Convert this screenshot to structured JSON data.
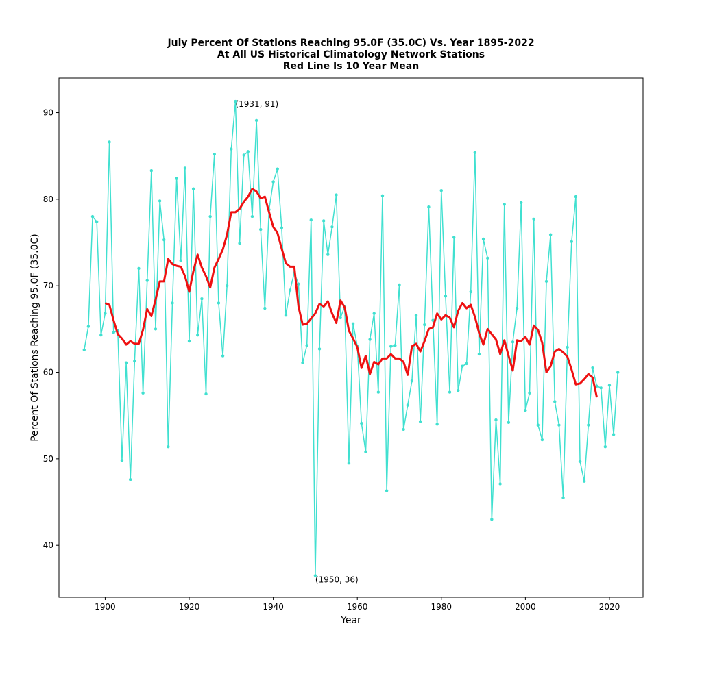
{
  "chart_data": {
    "type": "line",
    "title_lines": [
      "July Percent Of Stations Reaching 95.0F (35.0C) Vs. Year 1895-2022",
      "At All US Historical Climatology Network Stations",
      "Red Line Is 10 Year Mean"
    ],
    "xlabel": "Year",
    "ylabel": "Percent Of Stations Reaching 95.0F (35.0C)",
    "xlim": [
      1889,
      2028
    ],
    "ylim": [
      34,
      94
    ],
    "x_ticks": [
      1900,
      1920,
      1940,
      1960,
      1980,
      2000,
      2020
    ],
    "y_ticks": [
      40,
      50,
      60,
      70,
      80,
      90
    ],
    "grid": false,
    "colors": {
      "annual": "#40e0d0",
      "mean": "#ee1111",
      "axis": "#000000"
    },
    "annotations": [
      {
        "text": "(1931, 91)",
        "x": 1931,
        "y": 91
      },
      {
        "text": "(1950, 36)",
        "x": 1950,
        "y": 36
      }
    ],
    "series": [
      {
        "key": "annual",
        "x": [
          1895,
          1896,
          1897,
          1898,
          1899,
          1900,
          1901,
          1902,
          1903,
          1904,
          1905,
          1906,
          1907,
          1908,
          1909,
          1910,
          1911,
          1912,
          1913,
          1914,
          1915,
          1916,
          1917,
          1918,
          1919,
          1920,
          1921,
          1922,
          1923,
          1924,
          1925,
          1926,
          1927,
          1928,
          1929,
          1930,
          1931,
          1932,
          1933,
          1934,
          1935,
          1936,
          1937,
          1938,
          1939,
          1940,
          1941,
          1942,
          1943,
          1944,
          1945,
          1946,
          1947,
          1948,
          1949,
          1950,
          1951,
          1952,
          1953,
          1954,
          1955,
          1956,
          1957,
          1958,
          1959,
          1960,
          1961,
          1962,
          1963,
          1964,
          1965,
          1966,
          1967,
          1968,
          1969,
          1970,
          1971,
          1972,
          1973,
          1974,
          1975,
          1976,
          1977,
          1978,
          1979,
          1980,
          1981,
          1982,
          1983,
          1984,
          1985,
          1986,
          1987,
          1988,
          1989,
          1990,
          1991,
          1992,
          1993,
          1994,
          1995,
          1996,
          1997,
          1998,
          1999,
          2000,
          2001,
          2002,
          2003,
          2004,
          2005,
          2006,
          2007,
          2008,
          2009,
          2010,
          2011,
          2012,
          2013,
          2014,
          2015,
          2016,
          2017,
          2018,
          2019,
          2020,
          2021,
          2022
        ],
        "values": [
          62.6,
          65.3,
          78.0,
          77.4,
          64.3,
          66.8,
          86.6,
          64.6,
          64.8,
          49.8,
          61.1,
          47.6,
          61.3,
          72.0,
          57.6,
          70.6,
          83.3,
          65.0,
          79.8,
          75.3,
          51.4,
          68.0,
          82.4,
          72.9,
          83.6,
          63.6,
          81.2,
          64.3,
          68.5,
          57.5,
          78.0,
          85.2,
          68.0,
          61.9,
          70.0,
          85.8,
          91.3,
          74.9,
          85.1,
          85.5,
          78.0,
          89.1,
          76.5,
          67.4,
          78.8,
          82.0,
          83.5,
          76.7,
          66.6,
          69.5,
          71.5,
          70.2,
          61.1,
          63.1,
          77.6,
          36.5,
          62.7,
          77.5,
          73.6,
          76.8,
          80.5,
          66.3,
          67.6,
          49.5,
          65.6,
          63.0,
          54.1,
          50.8,
          63.8,
          66.8,
          57.7,
          80.4,
          46.3,
          63.0,
          63.1,
          70.1,
          53.4,
          56.2,
          59.0,
          66.6,
          54.3,
          65.5,
          79.1,
          66.0,
          54.0,
          81.0,
          68.8,
          57.7,
          75.6,
          57.9,
          60.7,
          61.0,
          69.3,
          85.4,
          62.1,
          75.4,
          73.2,
          43.0,
          54.5,
          47.1,
          79.4,
          54.2,
          63.5,
          67.4,
          79.6,
          55.6,
          57.6,
          77.7,
          53.9,
          52.2,
          70.5,
          75.9,
          56.6,
          53.9,
          45.5,
          62.9,
          75.1,
          80.3,
          49.7,
          47.4,
          53.9,
          60.5,
          58.4,
          58.2,
          51.4,
          58.5,
          52.8,
          60.0
        ]
      },
      {
        "key": "mean",
        "x": [
          1900,
          1901,
          1902,
          1903,
          1904,
          1905,
          1906,
          1907,
          1908,
          1909,
          1910,
          1911,
          1912,
          1913,
          1914,
          1915,
          1916,
          1917,
          1918,
          1919,
          1920,
          1921,
          1922,
          1923,
          1924,
          1925,
          1926,
          1927,
          1928,
          1929,
          1930,
          1931,
          1932,
          1933,
          1934,
          1935,
          1936,
          1937,
          1938,
          1939,
          1940,
          1941,
          1942,
          1943,
          1944,
          1945,
          1946,
          1947,
          1948,
          1949,
          1950,
          1951,
          1952,
          1953,
          1954,
          1955,
          1956,
          1957,
          1958,
          1959,
          1960,
          1961,
          1962,
          1963,
          1964,
          1965,
          1966,
          1967,
          1968,
          1969,
          1970,
          1971,
          1972,
          1973,
          1974,
          1975,
          1976,
          1977,
          1978,
          1979,
          1980,
          1981,
          1982,
          1983,
          1984,
          1985,
          1986,
          1987,
          1988,
          1989,
          1990,
          1991,
          1992,
          1993,
          1994,
          1995,
          1996,
          1997,
          1998,
          1999,
          2000,
          2001,
          2002,
          2003,
          2004,
          2005,
          2006,
          2007,
          2008,
          2009,
          2010,
          2011,
          2012,
          2013,
          2014,
          2015,
          2016,
          2017
        ],
        "values": [
          68.0,
          67.8,
          66.0,
          64.4,
          63.9,
          63.2,
          63.6,
          63.3,
          63.3,
          64.9,
          67.3,
          66.5,
          68.4,
          70.5,
          70.5,
          73.1,
          72.5,
          72.3,
          72.2,
          71.1,
          69.3,
          71.7,
          73.6,
          72.1,
          71.1,
          69.8,
          72.1,
          73.1,
          74.2,
          75.9,
          78.5,
          78.5,
          78.9,
          79.7,
          80.3,
          81.2,
          80.9,
          80.1,
          80.3,
          78.5,
          76.8,
          76.1,
          74.3,
          72.6,
          72.2,
          72.2,
          67.6,
          65.5,
          65.6,
          66.2,
          66.8,
          67.9,
          67.6,
          68.2,
          66.8,
          65.7,
          68.3,
          67.5,
          64.8,
          63.9,
          62.9,
          60.5,
          61.9,
          59.8,
          61.2,
          60.9,
          61.6,
          61.6,
          62.1,
          61.6,
          61.6,
          61.2,
          59.7,
          63.0,
          63.3,
          62.4,
          63.6,
          65.0,
          65.2,
          66.8,
          66.1,
          66.6,
          66.3,
          65.2,
          67.1,
          68.0,
          67.4,
          67.8,
          66.4,
          64.5,
          63.2,
          65.0,
          64.4,
          63.8,
          62.1,
          63.7,
          61.9,
          60.2,
          63.7,
          63.6,
          64.1,
          63.2,
          65.4,
          64.9,
          63.4,
          60.0,
          60.7,
          62.4,
          62.7,
          62.3,
          61.8,
          60.3,
          58.6,
          58.7,
          59.2,
          59.8,
          59.4,
          57.1
        ]
      }
    ]
  }
}
